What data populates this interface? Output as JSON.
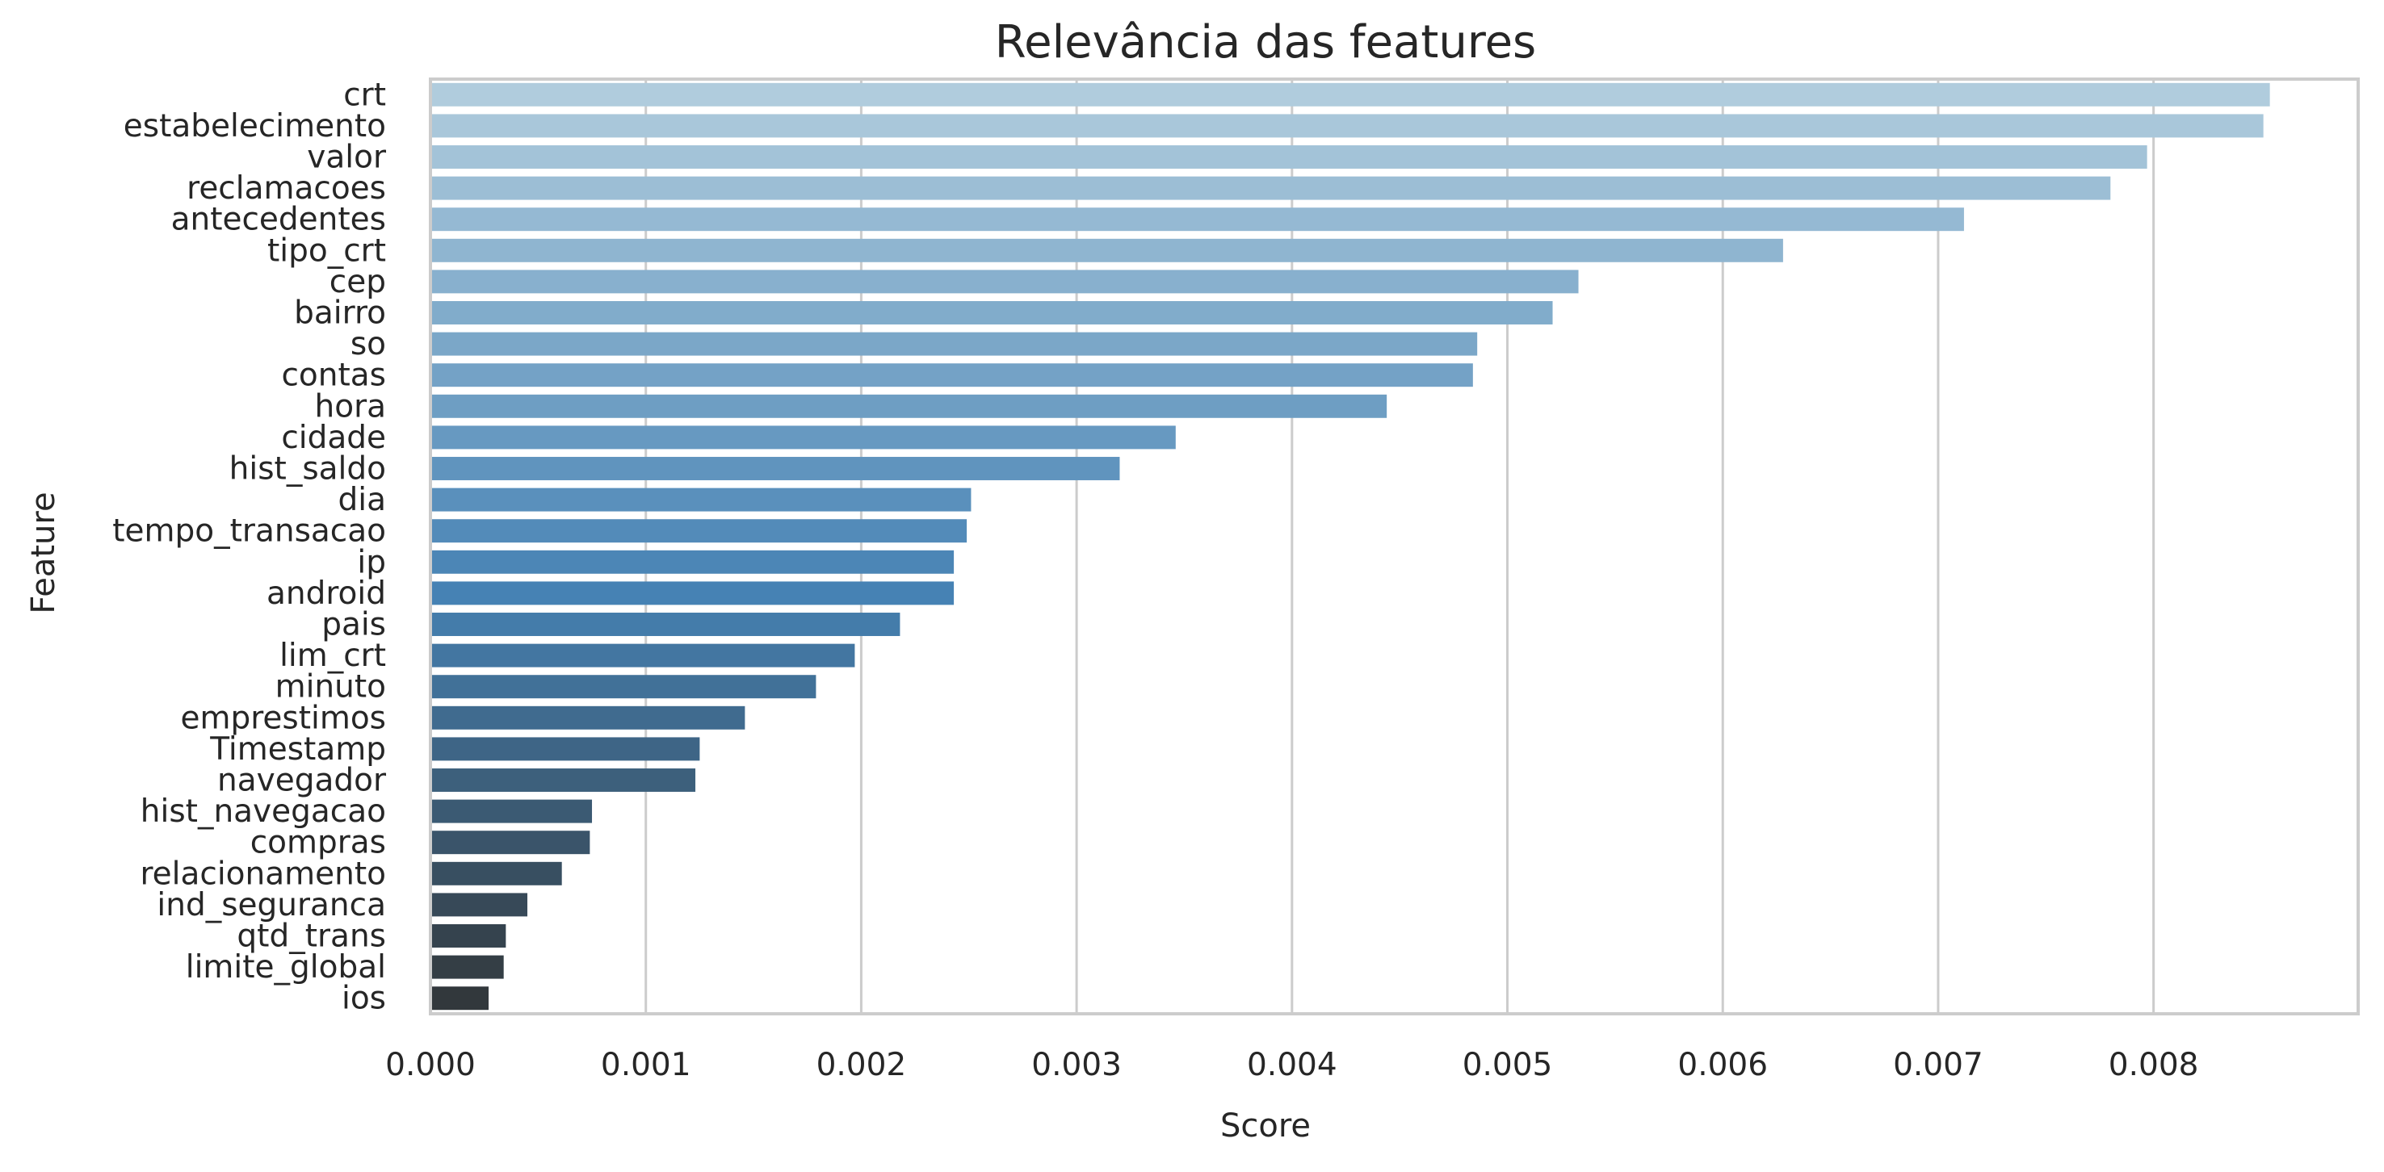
{
  "chart_data": {
    "type": "bar",
    "orientation": "horizontal",
    "title": "Relevância das features",
    "xlabel": "Score",
    "ylabel": "Feature",
    "xlim": [
      0,
      0.00895
    ],
    "xticks": [
      0.0,
      0.001,
      0.002,
      0.003,
      0.004,
      0.005,
      0.006,
      0.007,
      0.008
    ],
    "xtick_labels": [
      "0.000",
      "0.001",
      "0.002",
      "0.003",
      "0.004",
      "0.005",
      "0.006",
      "0.007",
      "0.008"
    ],
    "grid": true,
    "legend": "none",
    "palette": "Blues_d",
    "color_start": "#b0ccdd",
    "color_end": "#32383c",
    "categories": [
      "crt",
      "estabelecimento",
      "valor",
      "reclamacoes",
      "antecedentes",
      "tipo_crt",
      "cep",
      "bairro",
      "so",
      "contas",
      "hora",
      "cidade",
      "hist_saldo",
      "dia",
      "tempo_transacao",
      "ip",
      "android",
      "pais",
      "lim_crt",
      "minuto",
      "emprestimos",
      "Timestamp",
      "navegador",
      "hist_navegacao",
      "compras",
      "relacionamento",
      "ind_seguranca",
      "qtd_trans",
      "limite_global",
      "ios"
    ],
    "values": [
      0.00854,
      0.00851,
      0.00797,
      0.0078,
      0.00712,
      0.00628,
      0.00533,
      0.00521,
      0.00486,
      0.00484,
      0.00444,
      0.00346,
      0.0032,
      0.00251,
      0.00249,
      0.00243,
      0.00243,
      0.00218,
      0.00197,
      0.00179,
      0.00146,
      0.00125,
      0.00123,
      0.00075,
      0.00074,
      0.00061,
      0.00045,
      0.00035,
      0.00034,
      0.00027
    ]
  }
}
